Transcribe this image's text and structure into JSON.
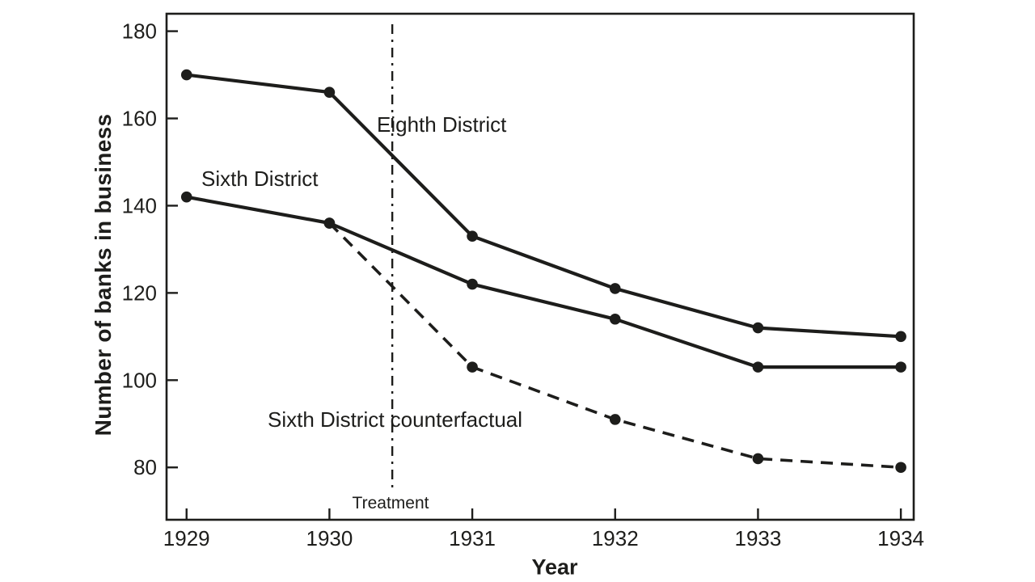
{
  "figure": {
    "background": "#ffffff",
    "ink": "#1d1d1b"
  },
  "chart_data": {
    "type": "line",
    "title": "",
    "xlabel": "Year",
    "ylabel": "Number of banks in business",
    "x_ticks": [
      "1929",
      "1930",
      "1931",
      "1932",
      "1933",
      "1934"
    ],
    "x_tick_values": [
      1929,
      1930,
      1931,
      1932,
      1933,
      1934
    ],
    "y_ticks": [
      "180",
      "160",
      "140",
      "120",
      "100",
      "80"
    ],
    "y_tick_values": [
      180,
      160,
      140,
      120,
      100,
      80
    ],
    "xlim": [
      1928.86,
      1934.09
    ],
    "ylim": [
      68,
      184
    ],
    "grid": false,
    "legend": "inline-labels",
    "series": [
      {
        "name": "Eighth District",
        "line_style": "solid",
        "marker": "circle",
        "x": [
          1929,
          1930,
          1931,
          1932,
          1933,
          1934
        ],
        "values": [
          170,
          166,
          133,
          121,
          112,
          110
        ]
      },
      {
        "name": "Sixth District",
        "line_style": "solid",
        "marker": "circle",
        "x": [
          1929,
          1930,
          1931,
          1932,
          1933,
          1934
        ],
        "values": [
          142,
          136,
          122,
          114,
          103,
          103
        ]
      },
      {
        "name": "Sixth District counterfactual",
        "line_style": "dashed",
        "marker": "circle",
        "x": [
          1930,
          1931,
          1932,
          1933,
          1934
        ],
        "values": [
          136,
          103,
          91,
          82,
          80
        ]
      }
    ],
    "annotations": {
      "vline": {
        "x": 1930.44,
        "label": "Treatment",
        "style": "dash-dot"
      }
    }
  }
}
